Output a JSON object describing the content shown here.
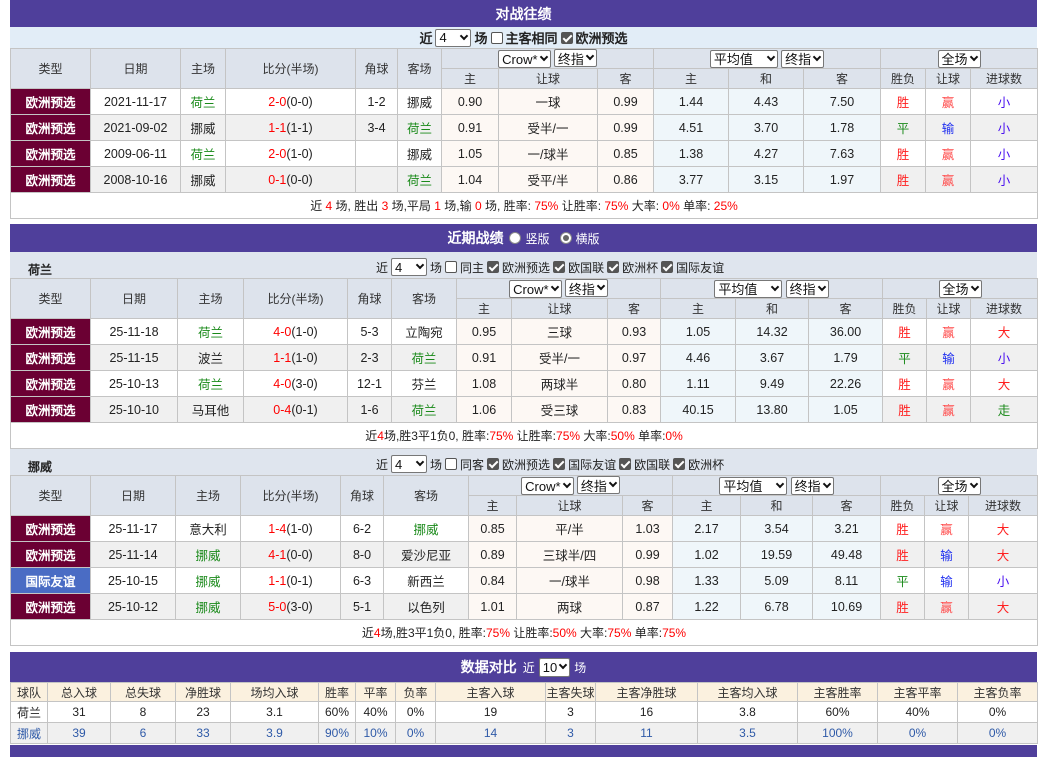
{
  "h2h": {
    "title": "对战往绩",
    "filter": {
      "prefix": "近",
      "count": "4",
      "suffix": "场",
      "same_label": "主客相同",
      "same_checked": false,
      "leagues": [
        {
          "label": "欧洲预选",
          "checked": true
        }
      ]
    },
    "headers": {
      "type": "类型",
      "date": "日期",
      "home": "主场",
      "score": "比分(半场)",
      "corner": "角球",
      "away": "客场",
      "company": "Crow*",
      "kind": "终指",
      "avg": "平均值",
      "avg_kind": "终指",
      "scope": "全场",
      "sub": [
        "主",
        "让球",
        "客",
        "主",
        "和",
        "客",
        "胜负",
        "让球",
        "进球数"
      ]
    },
    "rows": [
      {
        "type": "欧洲预选",
        "type_color": "#6b0033",
        "date": "2021-11-17",
        "home": "荷兰",
        "home_hl": true,
        "score": "2-0",
        "half": "(0-0)",
        "corner": "1-2",
        "away": "挪威",
        "away_hl": false,
        "o": [
          "0.90",
          "一球",
          "0.99"
        ],
        "e": [
          "1.44",
          "4.43",
          "7.50"
        ],
        "wl": "胜",
        "wl_color": "#ff2020",
        "hc": "赢",
        "hc_color": "#ff4a4a",
        "ou": "小",
        "ou_color": "#4a10f0"
      },
      {
        "type": "欧洲预选",
        "type_color": "#6b0033",
        "date": "2021-09-02",
        "home": "挪威",
        "home_hl": false,
        "score": "1-1",
        "half": "(1-1)",
        "corner": "3-4",
        "away": "荷兰",
        "away_hl": true,
        "o": [
          "0.91",
          "受半/一",
          "0.99"
        ],
        "e": [
          "4.51",
          "3.70",
          "1.78"
        ],
        "wl": "平",
        "wl_color": "#1a8a1a",
        "hc": "输",
        "hc_color": "#2030f0",
        "ou": "小",
        "ou_color": "#4a10f0"
      },
      {
        "type": "欧洲预选",
        "type_color": "#6b0033",
        "date": "2009-06-11",
        "home": "荷兰",
        "home_hl": true,
        "score": "2-0",
        "half": "(1-0)",
        "corner": "",
        "away": "挪威",
        "away_hl": false,
        "o": [
          "1.05",
          "一/球半",
          "0.85"
        ],
        "e": [
          "1.38",
          "4.27",
          "7.63"
        ],
        "wl": "胜",
        "wl_color": "#ff2020",
        "hc": "赢",
        "hc_color": "#ff4a4a",
        "ou": "小",
        "ou_color": "#4a10f0"
      },
      {
        "type": "欧洲预选",
        "type_color": "#6b0033",
        "date": "2008-10-16",
        "home": "挪威",
        "home_hl": false,
        "score": "0-1",
        "half": "(0-0)",
        "corner": "",
        "away": "荷兰",
        "away_hl": true,
        "o": [
          "1.04",
          "受平/半",
          "0.86"
        ],
        "e": [
          "3.77",
          "3.15",
          "1.97"
        ],
        "wl": "胜",
        "wl_color": "#ff2020",
        "hc": "赢",
        "hc_color": "#ff4a4a",
        "ou": "小",
        "ou_color": "#4a10f0"
      }
    ],
    "summary": [
      {
        "t": "近 ",
        "hl": false
      },
      {
        "t": "4",
        "hl": true
      },
      {
        "t": " 场, 胜出 ",
        "hl": false
      },
      {
        "t": "3",
        "hl": true
      },
      {
        "t": " 场,平局 ",
        "hl": false
      },
      {
        "t": "1",
        "hl": true
      },
      {
        "t": " 场,输 ",
        "hl": false
      },
      {
        "t": "0",
        "hl": true
      },
      {
        "t": " 场, 胜率: ",
        "hl": false
      },
      {
        "t": "75%",
        "hl": true
      },
      {
        "t": " 让胜率: ",
        "hl": false
      },
      {
        "t": "75%",
        "hl": true
      },
      {
        "t": " 大率: ",
        "hl": false
      },
      {
        "t": "0%",
        "hl": true
      },
      {
        "t": " 单率: ",
        "hl": false
      },
      {
        "t": "25%",
        "hl": true
      }
    ]
  },
  "recent": {
    "title": "近期战绩",
    "view_options": [
      {
        "label": "竖版",
        "selected": false
      },
      {
        "label": "横版",
        "selected": true
      }
    ],
    "teams": [
      {
        "name": "荷兰",
        "filter": {
          "prefix": "近",
          "count": "4",
          "suffix": "场",
          "same_label": "同主",
          "same_checked": false,
          "leagues": [
            {
              "label": "欧洲预选",
              "checked": true
            },
            {
              "label": "欧国联",
              "checked": true
            },
            {
              "label": "欧洲杯",
              "checked": true
            },
            {
              "label": "国际友谊",
              "checked": true
            }
          ]
        },
        "headers": {
          "type": "类型",
          "date": "日期",
          "home": "主场",
          "score": "比分(半场)",
          "corner": "角球",
          "away": "客场",
          "company": "Crow*",
          "kind": "终指",
          "avg": "平均值",
          "avg_kind": "终指",
          "scope": "全场",
          "sub": [
            "主",
            "让球",
            "客",
            "主",
            "和",
            "客",
            "胜负",
            "让球",
            "进球数"
          ]
        },
        "rows": [
          {
            "type": "欧洲预选",
            "type_color": "#6b0033",
            "date": "25-11-18",
            "home": "荷兰",
            "home_hl": true,
            "score": "4-0",
            "half": "(1-0)",
            "corner": "5-3",
            "away": "立陶宛",
            "away_hl": false,
            "o": [
              "0.95",
              "三球",
              "0.93"
            ],
            "e": [
              "1.05",
              "14.32",
              "36.00"
            ],
            "wl": "胜",
            "wl_color": "#ff2020",
            "hc": "赢",
            "hc_color": "#ff4a4a",
            "ou": "大",
            "ou_color": "#ff2020"
          },
          {
            "type": "欧洲预选",
            "type_color": "#6b0033",
            "date": "25-11-15",
            "home": "波兰",
            "home_hl": false,
            "score": "1-1",
            "half": "(1-0)",
            "corner": "2-3",
            "away": "荷兰",
            "away_hl": true,
            "o": [
              "0.91",
              "受半/一",
              "0.97"
            ],
            "e": [
              "4.46",
              "3.67",
              "1.79"
            ],
            "wl": "平",
            "wl_color": "#1a8a1a",
            "hc": "输",
            "hc_color": "#2030f0",
            "ou": "小",
            "ou_color": "#4a10f0"
          },
          {
            "type": "欧洲预选",
            "type_color": "#6b0033",
            "date": "25-10-13",
            "home": "荷兰",
            "home_hl": true,
            "score": "4-0",
            "half": "(3-0)",
            "corner": "12-1",
            "away": "芬兰",
            "away_hl": false,
            "o": [
              "1.08",
              "两球半",
              "0.80"
            ],
            "e": [
              "1.11",
              "9.49",
              "22.26"
            ],
            "wl": "胜",
            "wl_color": "#ff2020",
            "hc": "赢",
            "hc_color": "#ff4a4a",
            "ou": "大",
            "ou_color": "#ff2020"
          },
          {
            "type": "欧洲预选",
            "type_color": "#6b0033",
            "date": "25-10-10",
            "home": "马耳他",
            "home_hl": false,
            "score": "0-4",
            "half": "(0-1)",
            "corner": "1-6",
            "away": "荷兰",
            "away_hl": true,
            "o": [
              "1.06",
              "受三球",
              "0.83"
            ],
            "e": [
              "40.15",
              "13.80",
              "1.05"
            ],
            "wl": "胜",
            "wl_color": "#ff2020",
            "hc": "赢",
            "hc_color": "#ff4a4a",
            "ou": "走",
            "ou_color": "#1a8a1a"
          }
        ],
        "summary": [
          {
            "t": "近",
            "hl": false
          },
          {
            "t": "4",
            "hl": true
          },
          {
            "t": "场,胜3平1负0, 胜率:",
            "hl": false
          },
          {
            "t": "75%",
            "hl": true
          },
          {
            "t": " 让胜率:",
            "hl": false
          },
          {
            "t": "75%",
            "hl": true
          },
          {
            "t": " 大率:",
            "hl": false
          },
          {
            "t": "50%",
            "hl": true
          },
          {
            "t": " 单率:",
            "hl": false
          },
          {
            "t": "0%",
            "hl": true
          }
        ]
      },
      {
        "name": "挪威",
        "filter": {
          "prefix": "近",
          "count": "4",
          "suffix": "场",
          "same_label": "同客",
          "same_checked": false,
          "leagues": [
            {
              "label": "欧洲预选",
              "checked": true
            },
            {
              "label": "国际友谊",
              "checked": true
            },
            {
              "label": "欧国联",
              "checked": true
            },
            {
              "label": "欧洲杯",
              "checked": true
            }
          ]
        },
        "headers": {
          "type": "类型",
          "date": "日期",
          "home": "主场",
          "score": "比分(半场)",
          "corner": "角球",
          "away": "客场",
          "company": "Crow*",
          "kind": "终指",
          "avg": "平均值",
          "avg_kind": "终指",
          "scope": "全场",
          "sub": [
            "主",
            "让球",
            "客",
            "主",
            "和",
            "客",
            "胜负",
            "让球",
            "进球数"
          ]
        },
        "rows": [
          {
            "type": "欧洲预选",
            "type_color": "#6b0033",
            "date": "25-11-17",
            "home": "意大利",
            "home_hl": false,
            "score": "1-4",
            "half": "(1-0)",
            "corner": "6-2",
            "away": "挪威",
            "away_hl": true,
            "o": [
              "0.85",
              "平/半",
              "1.03"
            ],
            "e": [
              "2.17",
              "3.54",
              "3.21"
            ],
            "wl": "胜",
            "wl_color": "#ff2020",
            "hc": "赢",
            "hc_color": "#ff4a4a",
            "ou": "大",
            "ou_color": "#ff2020"
          },
          {
            "type": "欧洲预选",
            "type_color": "#6b0033",
            "date": "25-11-14",
            "home": "挪威",
            "home_hl": true,
            "score": "4-1",
            "half": "(0-0)",
            "corner": "8-0",
            "away": "爱沙尼亚",
            "away_hl": false,
            "o": [
              "0.89",
              "三球半/四",
              "0.99"
            ],
            "e": [
              "1.02",
              "19.59",
              "49.48"
            ],
            "wl": "胜",
            "wl_color": "#ff2020",
            "hc": "输",
            "hc_color": "#2030f0",
            "ou": "大",
            "ou_color": "#ff2020"
          },
          {
            "type": "国际友谊",
            "type_color": "#4a6cc4",
            "date": "25-10-15",
            "home": "挪威",
            "home_hl": true,
            "score": "1-1",
            "half": "(0-1)",
            "corner": "6-3",
            "away": "新西兰",
            "away_hl": false,
            "o": [
              "0.84",
              "一/球半",
              "0.98"
            ],
            "e": [
              "1.33",
              "5.09",
              "8.11"
            ],
            "wl": "平",
            "wl_color": "#1a8a1a",
            "hc": "输",
            "hc_color": "#2030f0",
            "ou": "小",
            "ou_color": "#4a10f0"
          },
          {
            "type": "欧洲预选",
            "type_color": "#6b0033",
            "date": "25-10-12",
            "home": "挪威",
            "home_hl": true,
            "score": "5-0",
            "half": "(3-0)",
            "corner": "5-1",
            "away": "以色列",
            "away_hl": false,
            "o": [
              "1.01",
              "两球",
              "0.87"
            ],
            "e": [
              "1.22",
              "6.78",
              "10.69"
            ],
            "wl": "胜",
            "wl_color": "#ff2020",
            "hc": "赢",
            "hc_color": "#ff4a4a",
            "ou": "大",
            "ou_color": "#ff2020"
          }
        ],
        "summary": [
          {
            "t": "近",
            "hl": false
          },
          {
            "t": "4",
            "hl": true
          },
          {
            "t": "场,胜3平1负0, 胜率:",
            "hl": false
          },
          {
            "t": "75%",
            "hl": true
          },
          {
            "t": " 让胜率:",
            "hl": false
          },
          {
            "t": "50%",
            "hl": true
          },
          {
            "t": " 大率:",
            "hl": false
          },
          {
            "t": "75%",
            "hl": true
          },
          {
            "t": " 单率:",
            "hl": false
          },
          {
            "t": "75%",
            "hl": true
          }
        ]
      }
    ]
  },
  "compare": {
    "title": "数据对比",
    "prefix": "近",
    "count": "10",
    "suffix": "场",
    "headers": [
      "球队",
      "总入球",
      "总失球",
      "净胜球",
      "场均入球",
      "胜率",
      "平率",
      "负率",
      "主客入球",
      "主客失球",
      "主客净胜球",
      "主客均入球",
      "主客胜率",
      "主客平率",
      "主客负率"
    ],
    "rows": [
      [
        "荷兰",
        "31",
        "8",
        "23",
        "3.1",
        "60%",
        "40%",
        "0%",
        "19",
        "3",
        "16",
        "3.8",
        "60%",
        "40%",
        "0%"
      ],
      [
        "挪威",
        "39",
        "6",
        "33",
        "3.9",
        "90%",
        "10%",
        "0%",
        "14",
        "3",
        "11",
        "3.5",
        "100%",
        "0%",
        "0%"
      ]
    ]
  },
  "colors": {
    "header_bar": "#4f3f9b",
    "team_highlight": "#1a8a1a",
    "score_highlight": "#ff0000"
  }
}
